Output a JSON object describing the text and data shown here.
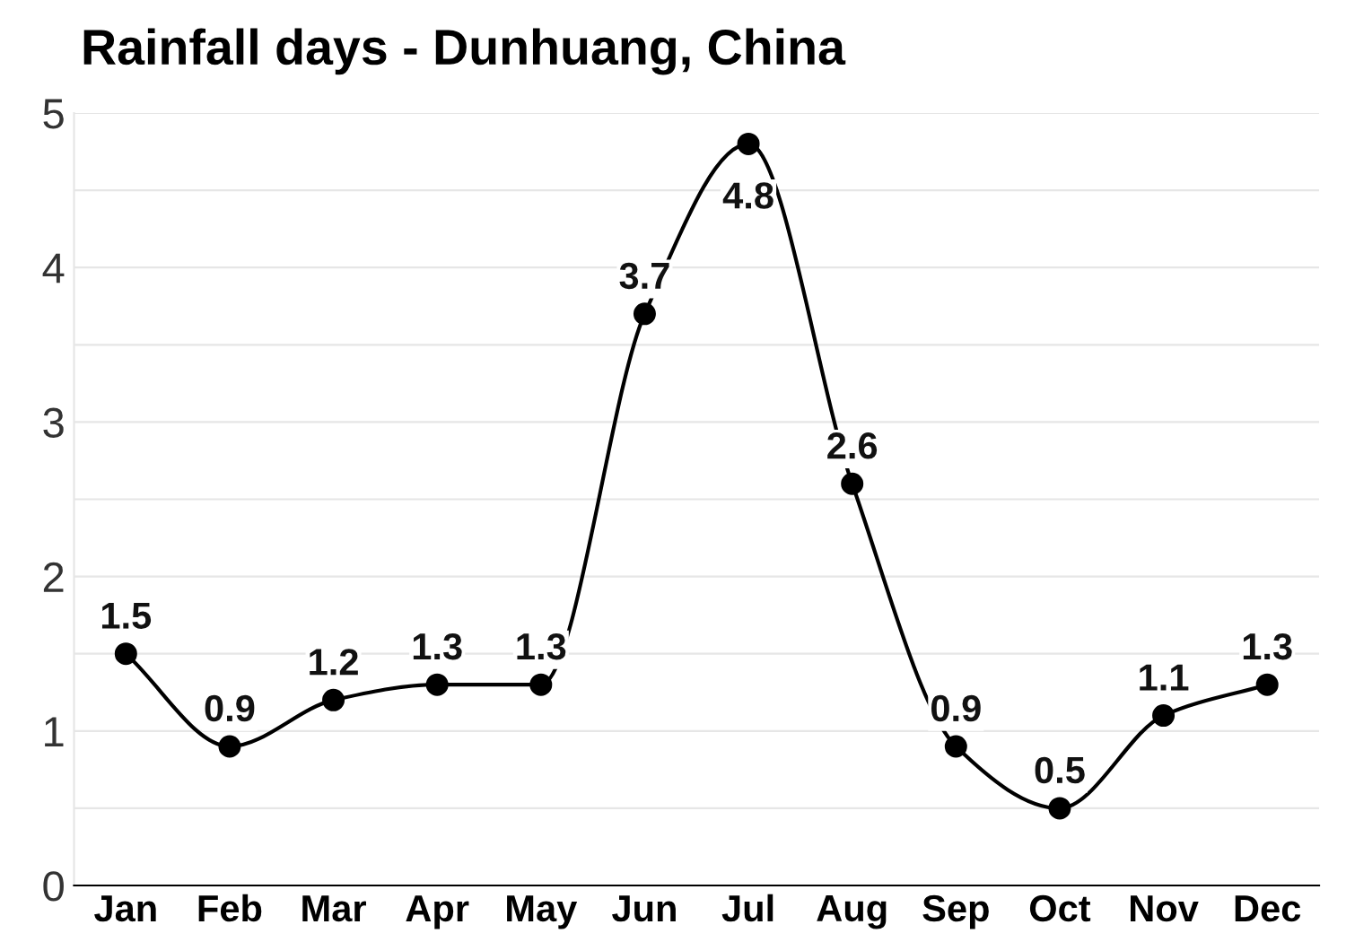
{
  "chart_data": {
    "type": "line",
    "title": "Rainfall days - Dunhuang, China",
    "categories": [
      "Jan",
      "Feb",
      "Mar",
      "Apr",
      "May",
      "Jun",
      "Jul",
      "Aug",
      "Sep",
      "Oct",
      "Nov",
      "Dec"
    ],
    "series": [
      {
        "color": "#000000",
        "values": [
          1.5,
          0.9,
          1.2,
          1.3,
          1.3,
          3.7,
          4.8,
          2.6,
          0.9,
          0.5,
          1.1,
          1.3
        ]
      }
    ],
    "ylim": [
      0,
      5
    ],
    "yticks": [
      0,
      {
        "value": 0.5,
        "label": null
      },
      1,
      {
        "value": 1.5,
        "label": null
      },
      2,
      {
        "value": 2.5,
        "label": null
      },
      3,
      {
        "value": 3.5,
        "label": null
      },
      4,
      {
        "value": 4.5,
        "label": null
      },
      5
    ],
    "grid": "y",
    "marker": "circle",
    "line_style": "solid",
    "data_labels": true
  }
}
